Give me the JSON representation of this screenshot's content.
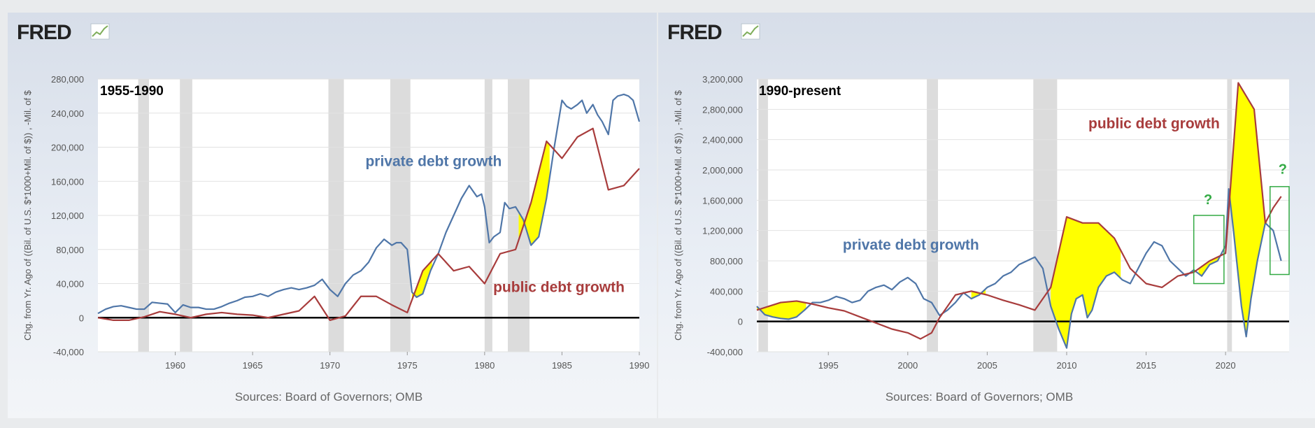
{
  "colors": {
    "private": "#4f76a8",
    "public": "#a83c3c",
    "fill": "#ffff00",
    "recession": "#dcdcdc",
    "label_private": "#4f76a8",
    "label_public": "#a83c3c",
    "box": "#33aa44"
  },
  "chart_data": [
    {
      "type": "line",
      "logo": "FRED",
      "period_label": "1955-1990",
      "ylabel": "Chg. from Yr. Ago of ((Bil. of U.S. $*1000+Mil. of $)) , -Mil. of $",
      "source": "Sources: Board of Governors; OMB",
      "xlim": [
        1955,
        1990
      ],
      "ylim": [
        -40000,
        280000
      ],
      "y_ticks": [
        -40000,
        0,
        40000,
        80000,
        120000,
        160000,
        200000,
        240000,
        280000
      ],
      "y_tick_labels": [
        "-40,000",
        "0",
        "40,000",
        "80,000",
        "120,000",
        "160,000",
        "200,000",
        "240,000",
        "280,000"
      ],
      "x_ticks": [
        1960,
        1965,
        1970,
        1975,
        1980,
        1985,
        1990
      ],
      "x_tick_labels": [
        "1960",
        "1965",
        "1970",
        "1975",
        "1980",
        "1985",
        "1990"
      ],
      "recessions": [
        [
          1957.6,
          1958.3
        ],
        [
          1960.3,
          1961.1
        ],
        [
          1969.9,
          1970.9
        ],
        [
          1973.9,
          1975.2
        ],
        [
          1980.0,
          1980.5
        ],
        [
          1981.5,
          1982.9
        ]
      ],
      "annotations": [
        {
          "text": "private debt growth",
          "series": "private",
          "x": 1976.7,
          "y": 178000
        },
        {
          "text": "public debt growth",
          "series": "public",
          "x": 1984.8,
          "y": 30000
        }
      ],
      "fill_regions": [
        [
          1975.3,
          1976.6
        ],
        [
          1982.2,
          1984.2
        ]
      ],
      "series": [
        {
          "name": "private",
          "x": [
            1955,
            1955.5,
            1956,
            1956.5,
            1957,
            1957.5,
            1958,
            1958.5,
            1959,
            1959.5,
            1960,
            1960.5,
            1961,
            1961.5,
            1962,
            1962.5,
            1963,
            1963.5,
            1964,
            1964.5,
            1965,
            1965.5,
            1966,
            1966.5,
            1967,
            1967.5,
            1968,
            1968.5,
            1969,
            1969.5,
            1970,
            1970.5,
            1971,
            1971.5,
            1972,
            1972.5,
            1973,
            1973.5,
            1974,
            1974.3,
            1974.6,
            1975,
            1975.3,
            1975.6,
            1976,
            1976.5,
            1977,
            1977.5,
            1978,
            1978.5,
            1979,
            1979.5,
            1979.8,
            1980,
            1980.3,
            1980.6,
            1981,
            1981.3,
            1981.6,
            1982,
            1982.5,
            1983,
            1983.5,
            1984,
            1984.5,
            1985,
            1985.3,
            1985.6,
            1986,
            1986.3,
            1986.6,
            1987,
            1987.3,
            1987.6,
            1988,
            1988.3,
            1988.6,
            1989,
            1989.3,
            1989.6,
            1990
          ],
          "values": [
            5000,
            10000,
            13000,
            14000,
            12000,
            10000,
            10000,
            18000,
            17000,
            16000,
            6000,
            15000,
            12000,
            12000,
            10000,
            10000,
            13000,
            17000,
            20000,
            24000,
            25000,
            28000,
            25000,
            30000,
            33000,
            35000,
            33000,
            35000,
            38000,
            45000,
            33000,
            25000,
            40000,
            50000,
            55000,
            65000,
            82000,
            92000,
            85000,
            88000,
            88000,
            80000,
            30000,
            24000,
            28000,
            55000,
            75000,
            100000,
            120000,
            140000,
            155000,
            142000,
            145000,
            130000,
            88000,
            95000,
            100000,
            135000,
            128000,
            130000,
            115000,
            85000,
            95000,
            140000,
            200000,
            255000,
            248000,
            245000,
            250000,
            255000,
            240000,
            250000,
            238000,
            230000,
            215000,
            255000,
            260000,
            262000,
            260000,
            255000,
            230000
          ]
        },
        {
          "name": "public",
          "x": [
            1955,
            1956,
            1957,
            1958,
            1959,
            1960,
            1961,
            1962,
            1963,
            1964,
            1965,
            1966,
            1967,
            1968,
            1969,
            1970,
            1971,
            1972,
            1973,
            1974,
            1975,
            1976,
            1977,
            1978,
            1979,
            1980,
            1981,
            1982,
            1983,
            1984,
            1985,
            1986,
            1987,
            1988,
            1989,
            1990
          ],
          "values": [
            0,
            -3000,
            -3000,
            1000,
            7000,
            4000,
            0,
            4000,
            6000,
            4000,
            3000,
            0,
            4000,
            8000,
            25000,
            -3000,
            2000,
            25000,
            25000,
            15000,
            6000,
            55000,
            75000,
            55000,
            60000,
            40000,
            75000,
            80000,
            135000,
            207000,
            187000,
            212000,
            222000,
            150000,
            155000,
            175000
          ]
        }
      ]
    },
    {
      "type": "line",
      "logo": "FRED",
      "period_label": "1990-present",
      "ylabel": "Chg. from Yr. Ago of ((Bil. of U.S. $*1000+Mil. of $)) , -Mil. of $",
      "source": "Sources: Board of Governors; OMB",
      "xlim": [
        1990.5,
        2024
      ],
      "ylim": [
        -400000,
        3200000
      ],
      "y_ticks": [
        -400000,
        0,
        400000,
        800000,
        1200000,
        1600000,
        2000000,
        2400000,
        2800000,
        3200000
      ],
      "y_tick_labels": [
        "-400,000",
        "0",
        "400,000",
        "800,000",
        "1,200,000",
        "1,600,000",
        "2,000,000",
        "2,400,000",
        "2,800,000",
        "3,200,000"
      ],
      "x_ticks": [
        1995,
        2000,
        2005,
        2010,
        2015,
        2020
      ],
      "x_tick_labels": [
        "1995",
        "2000",
        "2005",
        "2010",
        "2015",
        "2020"
      ],
      "recessions": [
        [
          1990.6,
          1991.2
        ],
        [
          2001.2,
          2001.9
        ],
        [
          2007.9,
          2009.4
        ],
        [
          2020.1,
          2020.4
        ]
      ],
      "annotations": [
        {
          "text": "public debt growth",
          "series": "public",
          "x": 2015.5,
          "y": 2550000
        },
        {
          "text": "private debt growth",
          "series": "private",
          "x": 2000.2,
          "y": 950000
        },
        {
          "text": "?",
          "series": "box",
          "x": 2018.9,
          "y": 1550000
        },
        {
          "text": "?",
          "series": "box",
          "x": 2023.6,
          "y": 1950000
        }
      ],
      "question_boxes": [
        {
          "x0": 2018.0,
          "x1": 2019.9,
          "y0": 500000,
          "y1": 1400000
        },
        {
          "x0": 2022.8,
          "x1": 2024.0,
          "y0": 620000,
          "y1": 1780000
        }
      ],
      "fill_regions": [
        [
          1990.5,
          1993.6
        ],
        [
          2004.0,
          2004.9
        ],
        [
          2009.0,
          2013.4
        ],
        [
          2018.3,
          2019.8
        ],
        [
          2020.3,
          2022.6
        ]
      ],
      "series": [
        {
          "name": "private",
          "x": [
            1990.5,
            1991,
            1991.5,
            1992,
            1992.5,
            1993,
            1993.5,
            1994,
            1994.5,
            1995,
            1995.5,
            1996,
            1996.5,
            1997,
            1997.5,
            1998,
            1998.5,
            1999,
            1999.5,
            2000,
            2000.5,
            2001,
            2001.5,
            2002,
            2002.5,
            2003,
            2003.5,
            2004,
            2004.5,
            2005,
            2005.5,
            2006,
            2006.5,
            2007,
            2007.5,
            2008,
            2008.5,
            2009,
            2009.5,
            2010,
            2010.3,
            2010.6,
            2011,
            2011.3,
            2011.6,
            2012,
            2012.5,
            2013,
            2013.5,
            2014,
            2014.5,
            2015,
            2015.5,
            2016,
            2016.5,
            2017,
            2017.5,
            2018,
            2018.5,
            2019,
            2019.5,
            2020,
            2020.2,
            2020.5,
            2021,
            2021.3,
            2021.6,
            2022,
            2022.5,
            2023,
            2023.5
          ],
          "values": [
            200000,
            90000,
            60000,
            40000,
            30000,
            60000,
            150000,
            250000,
            250000,
            280000,
            330000,
            300000,
            250000,
            280000,
            400000,
            450000,
            480000,
            420000,
            520000,
            580000,
            500000,
            300000,
            250000,
            80000,
            150000,
            250000,
            380000,
            300000,
            350000,
            450000,
            500000,
            600000,
            650000,
            750000,
            800000,
            850000,
            700000,
            200000,
            -100000,
            -350000,
            100000,
            300000,
            350000,
            50000,
            150000,
            450000,
            600000,
            650000,
            550000,
            500000,
            700000,
            900000,
            1050000,
            1000000,
            800000,
            700000,
            600000,
            680000,
            600000,
            750000,
            800000,
            1000000,
            1750000,
            1200000,
            200000,
            -200000,
            300000,
            800000,
            1300000,
            1200000,
            800000
          ]
        },
        {
          "name": "public",
          "x": [
            1990.5,
            1992,
            1993,
            1994,
            1995,
            1996,
            1997,
            1998,
            1999,
            2000,
            2000.8,
            2001.5,
            2002,
            2003,
            2004,
            2005,
            2006,
            2007,
            2008,
            2009,
            2010,
            2011,
            2012,
            2013,
            2014,
            2015,
            2016,
            2017,
            2018,
            2019,
            2020,
            2020.8,
            2021.8,
            2022.5,
            2023,
            2023.5
          ],
          "values": [
            150000,
            250000,
            270000,
            230000,
            180000,
            140000,
            60000,
            -20000,
            -100000,
            -150000,
            -230000,
            -150000,
            50000,
            350000,
            400000,
            350000,
            280000,
            220000,
            150000,
            450000,
            1380000,
            1300000,
            1300000,
            1100000,
            700000,
            500000,
            450000,
            600000,
            650000,
            800000,
            900000,
            3150000,
            2800000,
            1300000,
            1500000,
            1650000
          ]
        }
      ]
    }
  ]
}
